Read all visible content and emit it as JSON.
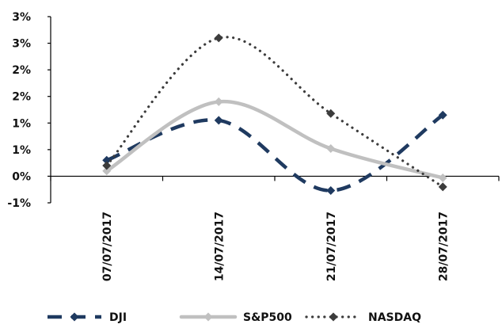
{
  "chart_data": {
    "type": "line",
    "categories": [
      "07/07/2017",
      "14/07/2017",
      "21/07/2017",
      "28/07/2017"
    ],
    "yticks": [
      {
        "value": -0.5,
        "label": "-1%"
      },
      {
        "value": 0,
        "label": "0%"
      },
      {
        "value": 0.5,
        "label": "1%"
      },
      {
        "value": 1.0,
        "label": "1%"
      },
      {
        "value": 1.5,
        "label": "2%"
      },
      {
        "value": 2.0,
        "label": "2%"
      },
      {
        "value": 2.5,
        "label": "3%"
      },
      {
        "value": 3.0,
        "label": "3%"
      }
    ],
    "ylim": [
      -0.5,
      3.0
    ],
    "grid": false,
    "legend_position": "bottom",
    "series": [
      {
        "name": "DJI",
        "values": [
          0.3,
          1.05,
          -0.27,
          1.15
        ],
        "color": "#1f3a60",
        "style": "dashed",
        "marker": "diamond"
      },
      {
        "name": "S&P500",
        "values": [
          0.1,
          1.4,
          0.52,
          -0.03
        ],
        "color": "#c0c0c0",
        "style": "solid",
        "marker": "diamond"
      },
      {
        "name": "NASDAQ",
        "values": [
          0.2,
          2.6,
          1.18,
          -0.2
        ],
        "color": "#3c3c3c",
        "style": "dotted",
        "marker": "diamond"
      }
    ]
  }
}
